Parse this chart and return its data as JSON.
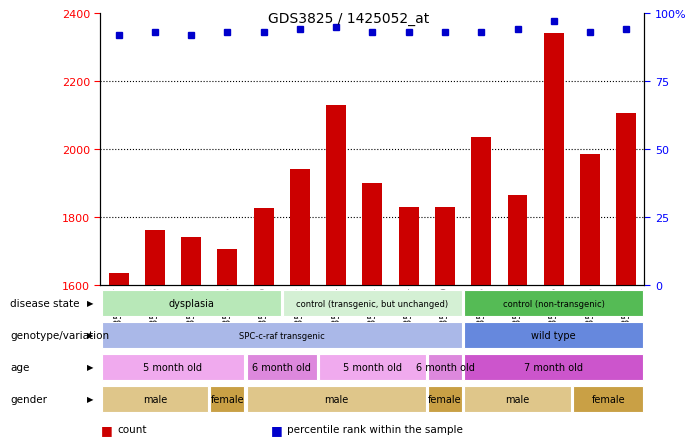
{
  "title": "GDS3825 / 1425052_at",
  "samples": [
    "GSM351067",
    "GSM351068",
    "GSM351066",
    "GSM351065",
    "GSM351069",
    "GSM351072",
    "GSM351094",
    "GSM351071",
    "GSM351064",
    "GSM351070",
    "GSM351095",
    "GSM351144",
    "GSM351146",
    "GSM351145",
    "GSM351147"
  ],
  "counts": [
    1635,
    1760,
    1740,
    1705,
    1825,
    1940,
    2130,
    1900,
    1830,
    1830,
    2035,
    1865,
    2340,
    1985,
    2105
  ],
  "percentile_ranks": [
    92,
    93,
    92,
    93,
    93,
    94,
    95,
    93,
    93,
    93,
    93,
    94,
    97,
    93,
    94
  ],
  "ylim_left": [
    1600,
    2400
  ],
  "ylim_right": [
    0,
    100
  ],
  "yticks_left": [
    1600,
    1800,
    2000,
    2200,
    2400
  ],
  "yticks_right": [
    0,
    25,
    50,
    75,
    100
  ],
  "bar_color": "#cc0000",
  "dot_color": "#0000cc",
  "disease_state_groups": [
    {
      "label": "dysplasia",
      "start": 0,
      "end": 5,
      "color": "#b8e8b8"
    },
    {
      "label": "control (transgenic, but unchanged)",
      "start": 5,
      "end": 10,
      "color": "#d4f0d4"
    },
    {
      "label": "control (non-transgenic)",
      "start": 10,
      "end": 15,
      "color": "#55bb55"
    }
  ],
  "genotype_groups": [
    {
      "label": "SPC-c-raf transgenic",
      "start": 0,
      "end": 10,
      "color": "#aab8e8"
    },
    {
      "label": "wild type",
      "start": 10,
      "end": 15,
      "color": "#6688dd"
    }
  ],
  "age_groups": [
    {
      "label": "5 month old",
      "start": 0,
      "end": 4,
      "color": "#f0aaee"
    },
    {
      "label": "6 month old",
      "start": 4,
      "end": 6,
      "color": "#dd88dd"
    },
    {
      "label": "5 month old",
      "start": 6,
      "end": 9,
      "color": "#f0aaee"
    },
    {
      "label": "6 month old",
      "start": 9,
      "end": 10,
      "color": "#dd88dd"
    },
    {
      "label": "7 month old",
      "start": 10,
      "end": 15,
      "color": "#cc55cc"
    }
  ],
  "gender_groups": [
    {
      "label": "male",
      "start": 0,
      "end": 3,
      "color": "#dfc68a"
    },
    {
      "label": "female",
      "start": 3,
      "end": 4,
      "color": "#c9a045"
    },
    {
      "label": "male",
      "start": 4,
      "end": 9,
      "color": "#dfc68a"
    },
    {
      "label": "female",
      "start": 9,
      "end": 10,
      "color": "#c9a045"
    },
    {
      "label": "male",
      "start": 10,
      "end": 13,
      "color": "#dfc68a"
    },
    {
      "label": "female",
      "start": 13,
      "end": 15,
      "color": "#c9a045"
    }
  ],
  "row_labels": [
    "disease state",
    "genotype/variation",
    "age",
    "gender"
  ],
  "legend_items": [
    {
      "label": "count",
      "color": "#cc0000"
    },
    {
      "label": "percentile rank within the sample",
      "color": "#0000cc"
    }
  ]
}
